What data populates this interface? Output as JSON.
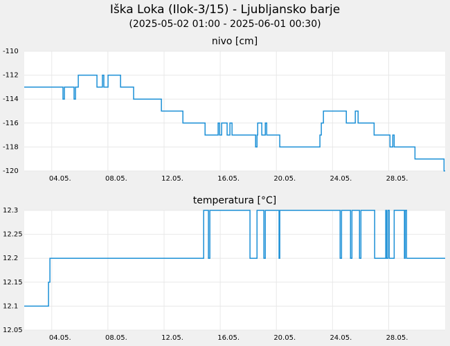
{
  "title": "Iška Loka (Ilok-3/15) - Ljubljansko barje",
  "subtitle": "(2025-05-02 01:00 - 2025-06-01 00:30)",
  "chart_data": [
    {
      "type": "line",
      "drawstyle": "steps-post",
      "title": "nivo [cm]",
      "color": "#1a8fd6",
      "grid": true,
      "x": [
        2.04,
        4.8,
        4.9,
        5.59,
        5.69,
        5.89,
        7.22,
        7.61,
        7.71,
        8.01,
        8.9,
        9.83,
        11.81,
        13.34,
        14.92,
        15.85,
        15.95,
        16.1,
        16.49,
        16.69,
        16.84,
        18.52,
        18.62,
        18.67,
        18.96,
        19.21,
        19.31,
        20.24,
        23.1,
        23.2,
        23.35,
        24.98,
        25.62,
        25.82,
        26.96,
        28.09,
        28.29,
        28.39,
        29.87,
        31.94,
        32.02
      ],
      "values": [
        -113,
        -114,
        -113,
        -114,
        -113,
        -112,
        -113,
        -112,
        -113,
        -112,
        -113,
        -114,
        -115,
        -116,
        -117,
        -116,
        -117,
        -116,
        -117,
        -116,
        -117,
        -118,
        -117,
        -116,
        -117,
        -116,
        -117,
        -118,
        -117,
        -116,
        -115,
        -116,
        -115,
        -116,
        -117,
        -118,
        -117,
        -118,
        -119,
        -120,
        -120
      ],
      "xlim": [
        2.04,
        32.02
      ],
      "xticks": [
        {
          "value": 4,
          "label": "04.05."
        },
        {
          "value": 8,
          "label": "08.05."
        },
        {
          "value": 12,
          "label": "12.05."
        },
        {
          "value": 16,
          "label": "16.05."
        },
        {
          "value": 20,
          "label": "20.05."
        },
        {
          "value": 24,
          "label": "24.05."
        },
        {
          "value": 28,
          "label": "28.05."
        }
      ],
      "ylim": [
        -120,
        -110
      ],
      "yticks": [
        -120,
        -118,
        -116,
        -114,
        -112,
        -110
      ]
    },
    {
      "type": "line",
      "drawstyle": "steps-post",
      "title": "temperatura [°C]",
      "color": "#1a8fd6",
      "grid": true,
      "x": [
        2.04,
        3.77,
        3.82,
        3.87,
        14.82,
        15.16,
        15.26,
        18.12,
        18.62,
        19.11,
        19.21,
        20.19,
        20.24,
        24.54,
        24.64,
        25.28,
        25.38,
        25.92,
        26.02,
        27.0,
        27.79,
        27.84,
        27.94,
        28.04,
        28.39,
        29.12,
        29.17,
        29.27,
        32.02
      ],
      "values": [
        12.1,
        12.15,
        12.15,
        12.2,
        12.3,
        12.2,
        12.3,
        12.2,
        12.3,
        12.2,
        12.3,
        12.2,
        12.3,
        12.2,
        12.3,
        12.2,
        12.3,
        12.2,
        12.3,
        12.2,
        12.3,
        12.2,
        12.3,
        12.2,
        12.3,
        12.2,
        12.3,
        12.2,
        12.2
      ],
      "xlim": [
        2.04,
        32.02
      ],
      "xticks": [
        {
          "value": 4,
          "label": "04.05."
        },
        {
          "value": 8,
          "label": "08.05."
        },
        {
          "value": 12,
          "label": "12.05."
        },
        {
          "value": 16,
          "label": "16.05."
        },
        {
          "value": 20,
          "label": "20.05."
        },
        {
          "value": 24,
          "label": "24.05."
        },
        {
          "value": 28,
          "label": "28.05."
        }
      ],
      "ylim": [
        12.05,
        12.3
      ],
      "yticks": [
        12.05,
        12.1,
        12.15,
        12.2,
        12.25,
        12.3
      ]
    }
  ]
}
